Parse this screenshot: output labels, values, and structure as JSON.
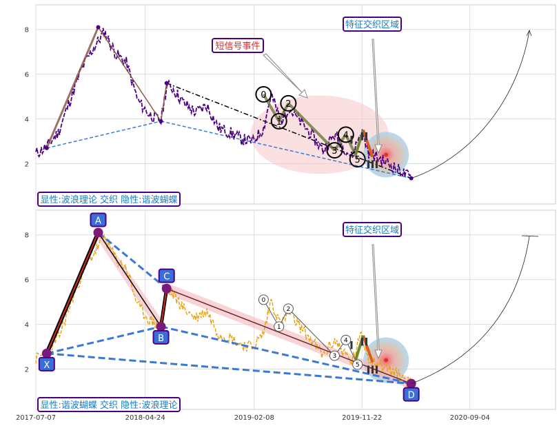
{
  "colors": {
    "price_top": "#4b0082",
    "price_bottom": "#e8a317",
    "support": "#3a78d8",
    "trend": "#000000",
    "ellipse": "#f5c6c8",
    "label_text": "#1a7bbf",
    "label_border": "#4b0082",
    "event_text": "#d12f2f",
    "point_fill": "#3a6fd8",
    "grid": "#dddddd"
  },
  "panels": {
    "top": {
      "feature_label": "特征交织区域",
      "event_label": "短信号事件",
      "legend": "显性:波浪理论 交织 隐性:谐波蝴蝶"
    },
    "bottom": {
      "feature_label": "特征交织区域",
      "legend": "显性:谐波蝴蝶 交织 隐性:波浪理论"
    }
  },
  "chart_data": [
    {
      "type": "line",
      "panel": "top",
      "xlim": [
        "2017-07-07",
        "2021-04-20"
      ],
      "ylim": [
        0.2,
        9.1
      ],
      "x_ticks": [
        "2017-07-07",
        "2018-04-24",
        "2019-02-08",
        "2019-11-22",
        "2020-09-04"
      ],
      "y_ticks": [
        2,
        4,
        6,
        8
      ],
      "grid": true,
      "price": [
        [
          "2017-07-07",
          2.45
        ],
        [
          "2017-08-05",
          2.75
        ],
        [
          "2017-09-05",
          3.4
        ],
        [
          "2017-10-05",
          4.8
        ],
        [
          "2017-11-05",
          6.2
        ],
        [
          "2017-12-05",
          7.1
        ],
        [
          "2018-01-05",
          7.9
        ],
        [
          "2018-02-05",
          6.9
        ],
        [
          "2018-03-05",
          6.5
        ],
        [
          "2018-04-05",
          4.8
        ],
        [
          "2018-05-05",
          4.2
        ],
        [
          "2018-06-05",
          3.9
        ],
        [
          "2018-06-20",
          5.5
        ],
        [
          "2018-07-05",
          5.4
        ],
        [
          "2018-08-05",
          4.7
        ],
        [
          "2018-09-05",
          4.3
        ],
        [
          "2018-10-05",
          4.6
        ],
        [
          "2018-11-05",
          3.6
        ],
        [
          "2018-12-05",
          3.4
        ],
        [
          "2019-01-05",
          3.1
        ],
        [
          "2019-02-05",
          3.0
        ],
        [
          "2019-03-05",
          3.6
        ],
        [
          "2019-03-25",
          5.1
        ],
        [
          "2019-04-20",
          3.9
        ],
        [
          "2019-05-10",
          4.5
        ],
        [
          "2019-06-05",
          4.0
        ],
        [
          "2019-07-05",
          3.4
        ],
        [
          "2019-08-10",
          2.6
        ],
        [
          "2019-09-10",
          3.3
        ],
        [
          "2019-10-25",
          2.3
        ],
        [
          "2019-11-20",
          3.5
        ],
        [
          "2019-12-10",
          2.5
        ],
        [
          "2020-01-10",
          2.2
        ],
        [
          "2020-02-01",
          2.0
        ],
        [
          "2020-03-01",
          1.7
        ],
        [
          "2020-04-01",
          1.35
        ]
      ],
      "wave_points": [
        {
          "label": "0",
          "x": "2019-03-05",
          "y": 5.1
        },
        {
          "label": "1",
          "x": "2019-04-15",
          "y": 3.9
        },
        {
          "label": "2",
          "x": "2019-05-10",
          "y": 4.7
        },
        {
          "label": "3",
          "x": "2019-09-10",
          "y": 2.6
        },
        {
          "label": "4",
          "x": "2019-10-10",
          "y": 3.3
        },
        {
          "label": "5",
          "x": "2019-11-10",
          "y": 2.2
        }
      ],
      "roman_labels": [
        {
          "label": "I",
          "x": "2019-10-25",
          "y": 2.9
        },
        {
          "label": "II",
          "x": "2019-11-28",
          "y": 3.05
        },
        {
          "label": "III",
          "x": "2019-12-20",
          "y": 1.8
        }
      ],
      "swing_points": [
        {
          "x": "2017-08-05",
          "y": 2.7
        },
        {
          "x": "2017-12-20",
          "y": 8.1
        },
        {
          "x": "2018-06-05",
          "y": 3.9
        },
        {
          "x": "2018-06-20",
          "y": 5.6
        },
        {
          "x": "2020-04-01",
          "y": 1.35
        }
      ]
    },
    {
      "type": "line",
      "panel": "bottom",
      "xlim": [
        "2017-07-07",
        "2021-04-20"
      ],
      "ylim": [
        0.2,
        9.1
      ],
      "x_ticks": [
        "2017-07-07",
        "2018-04-24",
        "2019-02-08",
        "2019-11-22",
        "2020-09-04"
      ],
      "y_ticks": [
        2,
        4,
        6,
        8
      ],
      "grid": true,
      "harmonic_points": [
        {
          "label": "X",
          "x": "2017-08-05",
          "y": 2.7
        },
        {
          "label": "A",
          "x": "2017-12-20",
          "y": 8.1
        },
        {
          "label": "B",
          "x": "2018-06-05",
          "y": 3.9
        },
        {
          "label": "C",
          "x": "2018-06-20",
          "y": 5.6
        },
        {
          "label": "D",
          "x": "2020-04-01",
          "y": 1.35
        }
      ],
      "wave_points": [
        {
          "label": "0",
          "x": "2019-03-05",
          "y": 5.1
        },
        {
          "label": "1",
          "x": "2019-04-15",
          "y": 3.9
        },
        {
          "label": "2",
          "x": "2019-05-10",
          "y": 4.7
        },
        {
          "label": "3",
          "x": "2019-09-10",
          "y": 2.6
        },
        {
          "label": "4",
          "x": "2019-10-10",
          "y": 3.3
        },
        {
          "label": "5",
          "x": "2019-11-10",
          "y": 2.2
        }
      ],
      "roman_labels": [
        {
          "label": "I",
          "x": "2019-10-25",
          "y": 2.9
        },
        {
          "label": "II",
          "x": "2019-11-28",
          "y": 3.05
        },
        {
          "label": "III",
          "x": "2019-12-20",
          "y": 1.8
        }
      ]
    }
  ]
}
